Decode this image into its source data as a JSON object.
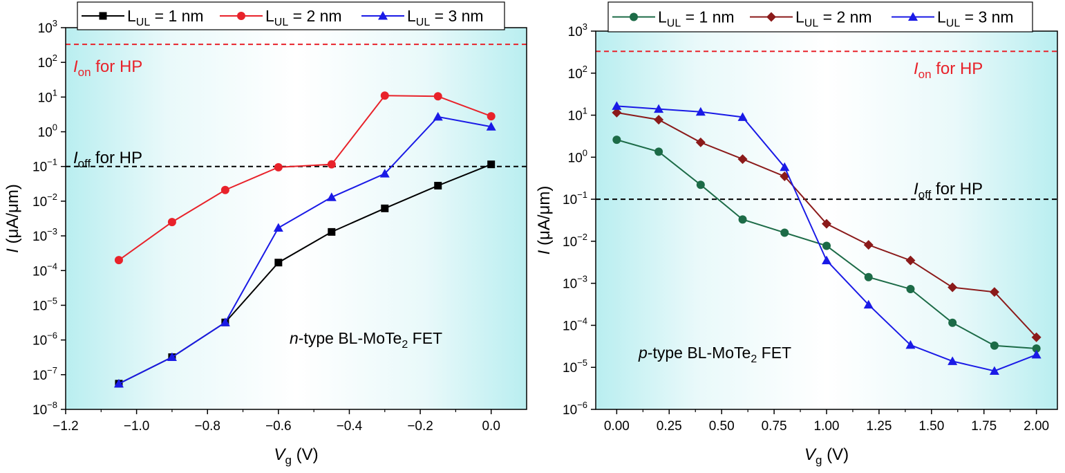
{
  "chart_data": [
    {
      "type": "line",
      "panel": "left",
      "xlabel": "V",
      "xlabel_sub": "g",
      "xlabel_unit": " (V)",
      "ylabel": "I",
      "ylabel_unit": " (μA/μm)",
      "xlim": [
        -1.2,
        0.1
      ],
      "ylim_exponent": [
        -8,
        3
      ],
      "y_scale": "log",
      "x_ticks": [
        -1.2,
        -1.0,
        -0.8,
        -0.6,
        -0.4,
        -0.2,
        0.0
      ],
      "x_tick_labels": [
        "−1.2",
        "−1.0",
        "−0.8",
        "−0.6",
        "−0.4",
        "−0.2",
        "0.0"
      ],
      "y_tick_exponents": [
        -8,
        -7,
        -6,
        -5,
        -4,
        -3,
        -2,
        -1,
        0,
        1,
        2,
        3
      ],
      "y_tick_base": "10",
      "annotation": {
        "italic": "n",
        "pre": "-type BL-MoTe",
        "sub": "2",
        "post": " FET"
      },
      "reference_lines": [
        {
          "value": 0.1,
          "color": "#000000",
          "label_main": "I",
          "label_sub": "off",
          "label_rest": " for HP"
        },
        {
          "value": 330,
          "color": "#e8222a",
          "label_main": "I",
          "label_sub": "on",
          "label_rest": " for HP"
        }
      ],
      "legend": {
        "position": "top",
        "entries": [
          {
            "main": "L",
            "sub": "UL",
            "rest": " = 1 nm"
          },
          {
            "main": "L",
            "sub": "UL",
            "rest": " = 2 nm"
          },
          {
            "main": "L",
            "sub": "UL",
            "rest": " = 3 nm"
          }
        ]
      },
      "series": [
        {
          "name": "LUL = 1 nm",
          "color": "#000000",
          "marker": "square",
          "x": [
            -1.05,
            -0.9,
            -0.75,
            -0.6,
            -0.45,
            -0.3,
            -0.15,
            0.0
          ],
          "y": [
            5.5e-08,
            3.2e-07,
            3.2e-06,
            0.00017,
            0.0013,
            0.0062,
            0.028,
            0.115
          ]
        },
        {
          "name": "LUL = 2 nm",
          "color": "#e8222a",
          "marker": "circle",
          "x": [
            -1.05,
            -0.9,
            -0.75,
            -0.6,
            -0.45,
            -0.3,
            -0.15,
            0.0
          ],
          "y": [
            0.0002,
            0.0025,
            0.021,
            0.095,
            0.115,
            11.0,
            10.5,
            2.8
          ]
        },
        {
          "name": "LUL = 3 nm",
          "color": "#1a1ae6",
          "marker": "triangle",
          "x": [
            -1.05,
            -0.9,
            -0.75,
            -0.6,
            -0.45,
            -0.3,
            -0.15,
            0.0
          ],
          "y": [
            5.5e-08,
            3.2e-07,
            3.2e-06,
            0.0017,
            0.013,
            0.062,
            2.7,
            1.4
          ]
        }
      ]
    },
    {
      "type": "line",
      "panel": "right",
      "xlabel": "V",
      "xlabel_sub": "g",
      "xlabel_unit": " (V)",
      "ylabel": "I",
      "ylabel_unit": " (μA/μm)",
      "xlim": [
        -0.1,
        2.1
      ],
      "ylim_exponent": [
        -6,
        3
      ],
      "y_scale": "log",
      "x_ticks": [
        0.0,
        0.25,
        0.5,
        0.75,
        1.0,
        1.25,
        1.5,
        1.75,
        2.0
      ],
      "x_tick_labels": [
        "0.00",
        "0.25",
        "0.50",
        "0.75",
        "1.00",
        "1.25",
        "1.50",
        "1.75",
        "2.00"
      ],
      "y_tick_exponents": [
        -6,
        -5,
        -4,
        -3,
        -2,
        -1,
        0,
        1,
        2,
        3
      ],
      "y_tick_base": "10",
      "annotation": {
        "italic": "p",
        "pre": "-type BL-MoTe",
        "sub": "2",
        "post": " FET"
      },
      "reference_lines": [
        {
          "value": 0.1,
          "color": "#000000",
          "label_main": "I",
          "label_sub": "off",
          "label_rest": " for HP"
        },
        {
          "value": 330,
          "color": "#e8222a",
          "label_main": "I",
          "label_sub": "on",
          "label_rest": " for HP"
        }
      ],
      "legend": {
        "position": "top",
        "entries": [
          {
            "main": "L",
            "sub": "UL",
            "rest": " = 1 nm"
          },
          {
            "main": "L",
            "sub": "UL",
            "rest": " = 2 nm"
          },
          {
            "main": "L",
            "sub": "UL",
            "rest": " = 3 nm"
          }
        ]
      },
      "series": [
        {
          "name": "LUL = 1 nm",
          "color": "#1c6b47",
          "marker": "circle",
          "x": [
            0.0,
            0.2,
            0.4,
            0.6,
            0.8,
            1.0,
            1.2,
            1.4,
            1.6,
            1.8,
            2.0
          ],
          "y": [
            2.6,
            1.35,
            0.22,
            0.033,
            0.016,
            0.0078,
            0.0014,
            0.00073,
            0.000115,
            3.3e-05,
            2.8e-05
          ]
        },
        {
          "name": "LUL = 2 nm",
          "color": "#8b1a1a",
          "marker": "diamond",
          "x": [
            0.0,
            0.2,
            0.4,
            0.6,
            0.8,
            1.0,
            1.2,
            1.4,
            1.6,
            1.8,
            2.0
          ],
          "y": [
            11.5,
            7.8,
            2.25,
            0.9,
            0.35,
            0.026,
            0.0082,
            0.0035,
            0.0008,
            0.00062,
            5.2e-05
          ]
        },
        {
          "name": "LUL = 3 nm",
          "color": "#1a1ae6",
          "marker": "triangle",
          "x": [
            0.0,
            0.2,
            0.4,
            0.6,
            0.8,
            1.0,
            1.2,
            1.4,
            1.6,
            1.8,
            2.0
          ],
          "y": [
            16.5,
            14.0,
            12.0,
            9.0,
            0.58,
            0.0035,
            0.00031,
            3.4e-05,
            1.4e-05,
            8.2e-06,
            2e-05
          ]
        }
      ]
    }
  ]
}
